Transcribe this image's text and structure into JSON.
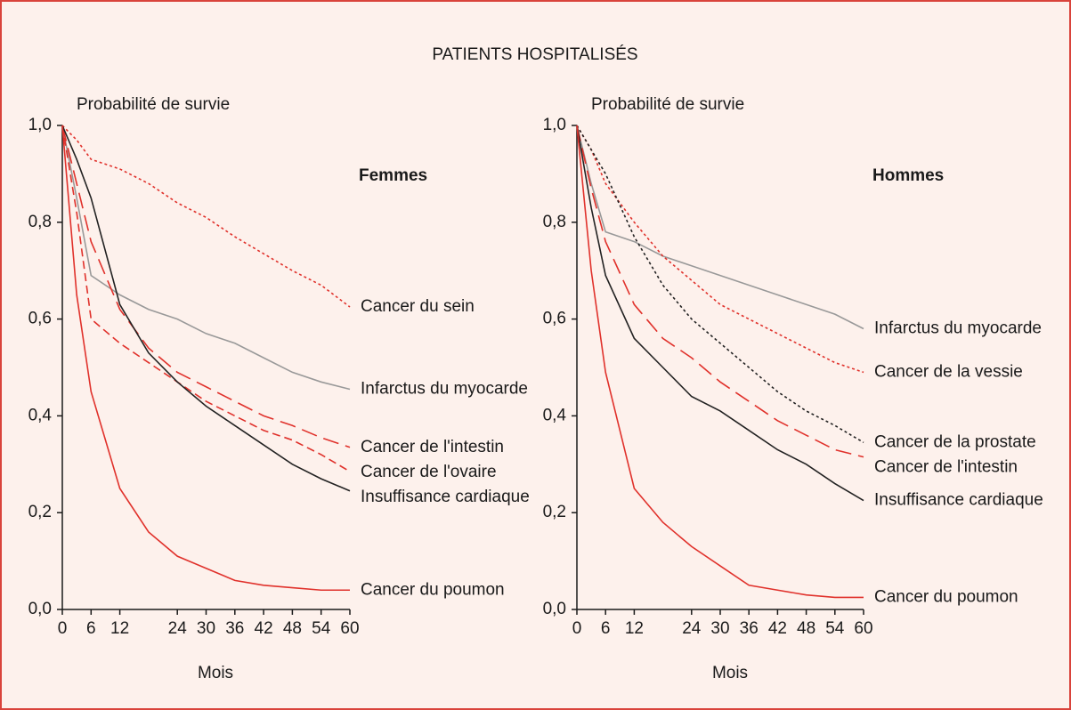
{
  "title": "PATIENTS HOSPITALISÉS",
  "chart_data": [
    {
      "type": "line",
      "y_label": "Probabilité de survie",
      "x_label": "Mois",
      "subtitle": "Femmes",
      "x": [
        0,
        3,
        6,
        12,
        18,
        24,
        30,
        36,
        42,
        48,
        54,
        60
      ],
      "xlim": [
        0,
        60
      ],
      "xticks": [
        0,
        6,
        12,
        24,
        30,
        36,
        42,
        48,
        54,
        60
      ],
      "ylim": [
        0,
        1
      ],
      "yticks": [
        {
          "value": 0,
          "label": "0,0"
        },
        {
          "value": 0.2,
          "label": "0,2"
        },
        {
          "value": 0.4,
          "label": "0,4"
        },
        {
          "value": 0.6,
          "label": "0,6"
        },
        {
          "value": 0.8,
          "label": "0,8"
        },
        {
          "value": 1,
          "label": "1,0"
        }
      ],
      "series": [
        {
          "name": "Cancer du sein",
          "color": "#e0312b",
          "dash": "dotted",
          "values": [
            1.0,
            0.97,
            0.93,
            0.91,
            0.88,
            0.84,
            0.81,
            0.77,
            0.735,
            0.7,
            0.67,
            0.625
          ]
        },
        {
          "name": "Infarctus du myocarde",
          "color": "#999999",
          "dash": "solid",
          "values": [
            1.0,
            0.85,
            0.69,
            0.65,
            0.62,
            0.6,
            0.57,
            0.55,
            0.52,
            0.49,
            0.47,
            0.455
          ]
        },
        {
          "name": "Cancer de l'intestin",
          "color": "#e0312b",
          "dash": "long-dashed",
          "values": [
            1.0,
            0.88,
            0.76,
            0.62,
            0.54,
            0.49,
            0.46,
            0.43,
            0.4,
            0.38,
            0.355,
            0.335
          ]
        },
        {
          "name": "Cancer de l'ovaire",
          "color": "#e0312b",
          "dash": "dashed",
          "values": [
            1.0,
            0.82,
            0.6,
            0.55,
            0.51,
            0.47,
            0.43,
            0.4,
            0.37,
            0.35,
            0.32,
            0.285
          ]
        },
        {
          "name": "Insuffisance cardiaque",
          "color": "#222222",
          "dash": "solid",
          "values": [
            1.0,
            0.93,
            0.85,
            0.63,
            0.53,
            0.47,
            0.42,
            0.38,
            0.34,
            0.3,
            0.27,
            0.245
          ]
        },
        {
          "name": "Cancer du poumon",
          "color": "#e0312b",
          "dash": "solid",
          "values": [
            1.0,
            0.65,
            0.45,
            0.25,
            0.16,
            0.11,
            0.085,
            0.06,
            0.05,
            0.045,
            0.04,
            0.04
          ]
        }
      ]
    },
    {
      "type": "line",
      "y_label": "Probabilité de survie",
      "x_label": "Mois",
      "subtitle": "Hommes",
      "x": [
        0,
        3,
        6,
        12,
        18,
        24,
        30,
        36,
        42,
        48,
        54,
        60
      ],
      "xlim": [
        0,
        60
      ],
      "xticks": [
        0,
        6,
        12,
        24,
        30,
        36,
        42,
        48,
        54,
        60
      ],
      "ylim": [
        0,
        1
      ],
      "yticks": [
        {
          "value": 0,
          "label": "0,0"
        },
        {
          "value": 0.2,
          "label": "0,2"
        },
        {
          "value": 0.4,
          "label": "0,4"
        },
        {
          "value": 0.6,
          "label": "0,6"
        },
        {
          "value": 0.8,
          "label": "0,8"
        },
        {
          "value": 1,
          "label": "1,0"
        }
      ],
      "series": [
        {
          "name": "Infarctus du myocarde",
          "color": "#999999",
          "dash": "solid",
          "values": [
            1.0,
            0.88,
            0.78,
            0.76,
            0.73,
            0.71,
            0.69,
            0.67,
            0.65,
            0.63,
            0.61,
            0.58
          ]
        },
        {
          "name": "Cancer de la vessie",
          "color": "#e0312b",
          "dash": "dotted",
          "values": [
            1.0,
            0.95,
            0.88,
            0.8,
            0.73,
            0.68,
            0.63,
            0.6,
            0.57,
            0.54,
            0.51,
            0.49
          ]
        },
        {
          "name": "Cancer de la prostate",
          "color": "#222222",
          "dash": "dotted",
          "values": [
            1.0,
            0.95,
            0.9,
            0.77,
            0.67,
            0.6,
            0.55,
            0.5,
            0.45,
            0.41,
            0.38,
            0.345
          ]
        },
        {
          "name": "Cancer de l'intestin",
          "color": "#e0312b",
          "dash": "long-dashed",
          "values": [
            1.0,
            0.87,
            0.76,
            0.63,
            0.56,
            0.52,
            0.47,
            0.43,
            0.39,
            0.36,
            0.33,
            0.315
          ]
        },
        {
          "name": "Insuffisance cardiaque",
          "color": "#222222",
          "dash": "solid",
          "values": [
            1.0,
            0.83,
            0.69,
            0.56,
            0.5,
            0.44,
            0.41,
            0.37,
            0.33,
            0.3,
            0.26,
            0.225
          ]
        },
        {
          "name": "Cancer du poumon",
          "color": "#e0312b",
          "dash": "solid",
          "values": [
            1.0,
            0.7,
            0.49,
            0.25,
            0.18,
            0.13,
            0.09,
            0.05,
            0.04,
            0.03,
            0.025,
            0.025
          ]
        }
      ]
    }
  ]
}
